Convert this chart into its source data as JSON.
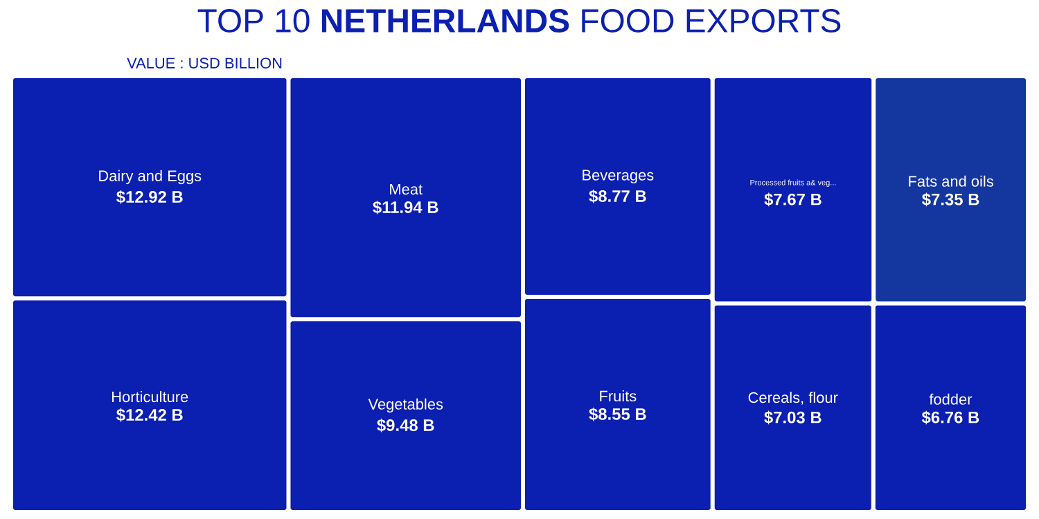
{
  "chart_data": {
    "type": "other",
    "title": "TOP 10 **NETHERLANDS** FOOD EXPORTS",
    "subtitle": "VALUE : USD BILLION",
    "categories": [
      "Dairy and Eggs",
      "Horticulture",
      "Meat",
      "Vegetables",
      "Beverages",
      "Fruits",
      "Processed fruits a& veg...",
      "Fats and oils",
      "Cereals, flour",
      "fodder"
    ],
    "values": [
      12.92,
      12.42,
      11.94,
      9.48,
      8.77,
      8.55,
      7.67,
      7.35,
      7.03,
      6.76
    ],
    "value_labels": [
      "$12.92 B",
      "$12.42 B",
      "$11.94 B",
      "$9.48 B",
      "$8.77 B",
      "$8.55 B",
      "$7.67 B",
      "$7.35 B",
      "$7.03 B",
      "$6.76 B"
    ],
    "colors": [
      "#0b1fb1",
      "#0b1fb1",
      "#0b1fb1",
      "#0b1fb1",
      "#0b1fb1",
      "#0b1fb1",
      "#0b1fb1",
      "#14369f",
      "#0b1fb1",
      "#0b1fb1"
    ]
  }
}
